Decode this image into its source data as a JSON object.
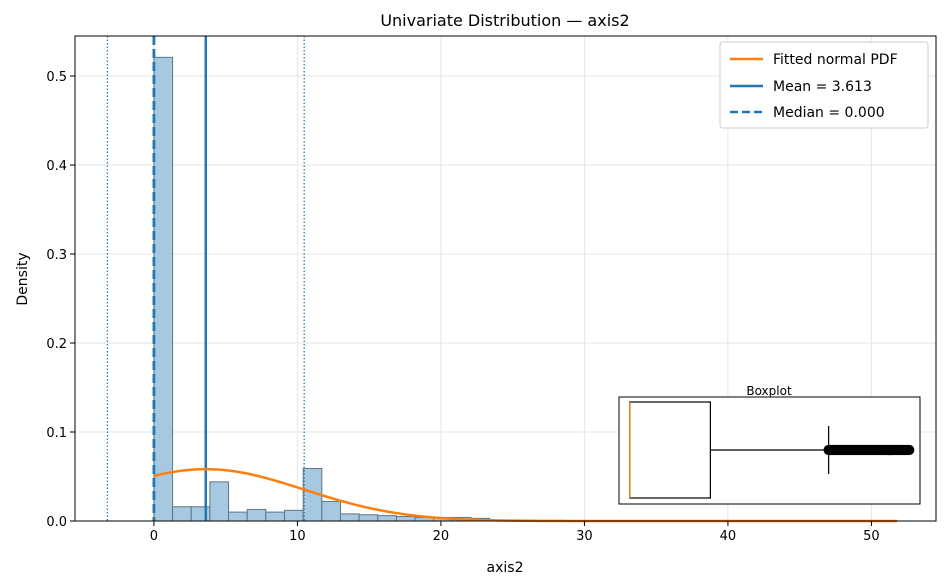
{
  "chart_data": {
    "type": "bar",
    "title": "Univariate Distribution — axis2",
    "xlabel": "axis2",
    "ylabel": "Density",
    "xlim": [
      -5.5,
      54.5
    ],
    "ylim": [
      0,
      0.545
    ],
    "xticks": [
      0,
      10,
      20,
      30,
      40,
      50
    ],
    "yticks": [
      0.0,
      0.1,
      0.2,
      0.3,
      0.4,
      0.5
    ],
    "xtick_labels": [
      "0",
      "10",
      "20",
      "30",
      "40",
      "50"
    ],
    "ytick_labels": [
      "0.0",
      "0.1",
      "0.2",
      "0.3",
      "0.4",
      "0.5"
    ],
    "grid": true,
    "legend_position": "top-right",
    "histogram": {
      "bin_edges": [
        0,
        1.3,
        2.6,
        3.9,
        5.2,
        6.5,
        7.8,
        9.1,
        10.4,
        11.7,
        13.0,
        14.3,
        15.6,
        16.9,
        18.2,
        19.5,
        20.8,
        22.1,
        23.4
      ],
      "densities": [
        0.521,
        0.016,
        0.016,
        0.044,
        0.01,
        0.013,
        0.01,
        0.012,
        0.059,
        0.022,
        0.008,
        0.007,
        0.006,
        0.005,
        0.004,
        0.004,
        0.004,
        0.003
      ],
      "color": "#a6c8e0"
    },
    "normal_pdf": {
      "name": "Fitted normal PDF",
      "mean": 3.613,
      "std": 6.85,
      "x_range": [
        0,
        51.8
      ],
      "color": "#ff7f0e"
    },
    "mean_line": {
      "name": "Mean = 3.613",
      "value": 3.613,
      "color": "#1f77b4"
    },
    "median_line": {
      "name": "Median = 0.000",
      "value": 0.0,
      "color": "#1f77b4"
    },
    "std_lines": {
      "values": [
        -3.24,
        10.47
      ],
      "color": "#1f77b4"
    },
    "inset_boxplot": {
      "title": "Boxplot",
      "min": 0,
      "q1": 0,
      "median": 0,
      "q3": 1.5,
      "whisker_high": 3.7,
      "outliers_from": 3.7,
      "outliers_to": 5.2,
      "x_range": [
        -0.2,
        5.4
      ]
    }
  }
}
